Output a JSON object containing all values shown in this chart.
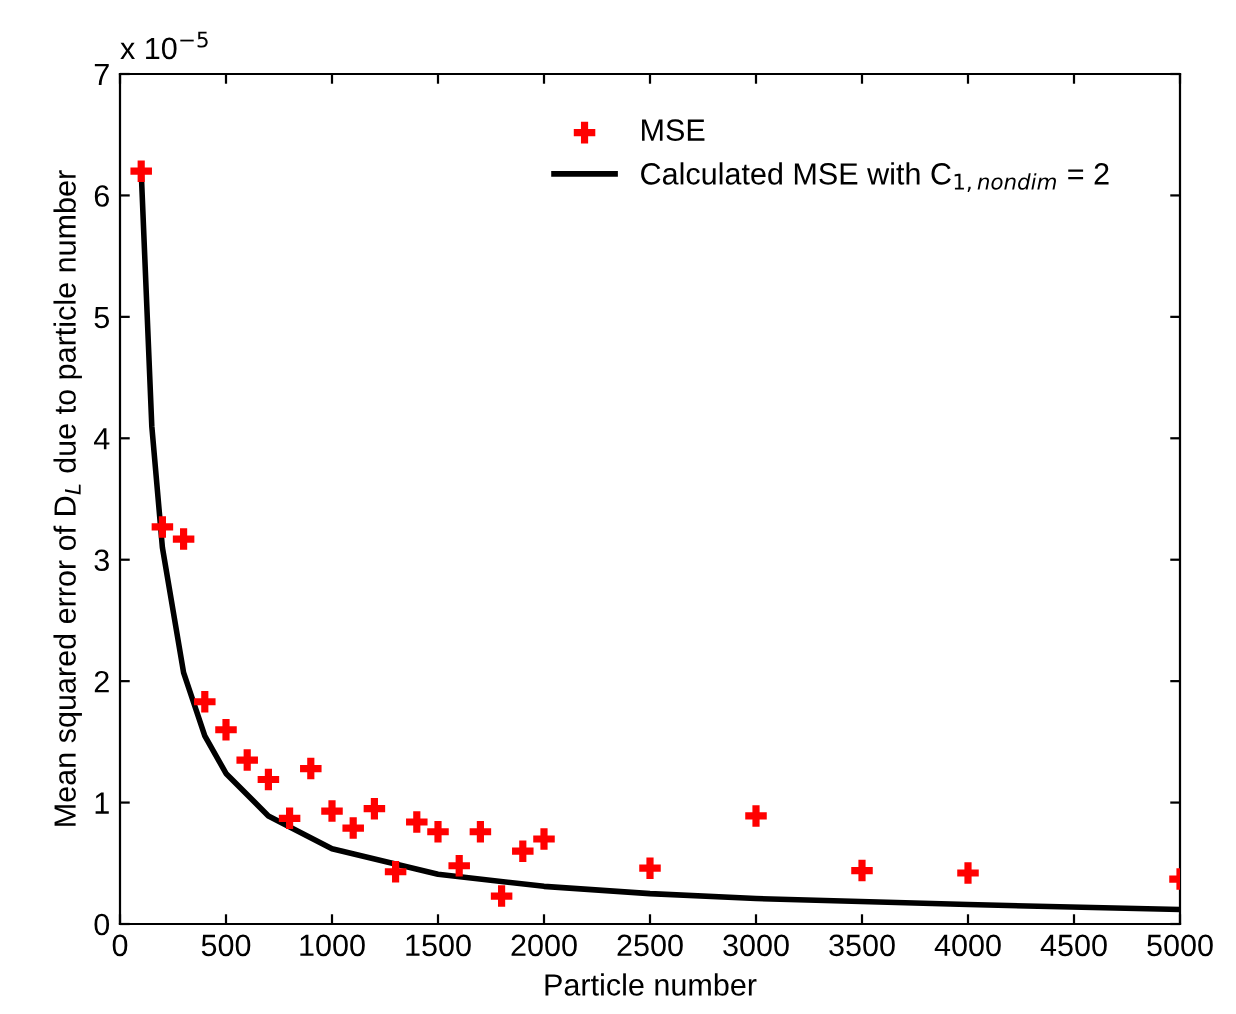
{
  "chart_data": {
    "type": "scatter",
    "xlabel": "Particle number",
    "ylabel": "Mean squared error of D$_{L}$ due to particle number",
    "annotations": [
      "x 10$^{−5}$"
    ],
    "xlim": [
      0,
      5000
    ],
    "xticks": [
      0,
      500,
      1000,
      1500,
      2000,
      2500,
      3000,
      3500,
      4000,
      4500,
      5000
    ],
    "ylim": [
      0,
      7
    ],
    "yticks": [
      0,
      1,
      2,
      3,
      4,
      5,
      6,
      7
    ],
    "grid": false,
    "legend": "top right",
    "series": [
      {
        "name": "MSE",
        "color": "#ff0000",
        "marker": "cross",
        "x": [
          100,
          200,
          300,
          400,
          500,
          600,
          700,
          800,
          900,
          1000,
          1100,
          1200,
          1300,
          1400,
          1500,
          1600,
          1700,
          1800,
          1900,
          2000,
          2500,
          3000,
          3500,
          4000,
          5000
        ],
        "values": [
          6.2,
          3.27,
          3.17,
          1.83,
          1.6,
          1.35,
          1.19,
          0.87,
          1.28,
          0.93,
          0.79,
          0.95,
          0.43,
          0.84,
          0.76,
          0.48,
          0.76,
          0.23,
          0.6,
          0.7,
          0.46,
          0.89,
          0.44,
          0.42,
          0.37
        ]
      },
      {
        "name": "Calculated MSE with C$_{1,nondim}$ = 2",
        "type": "line",
        "color": "#000000",
        "line_style": "solid",
        "x": [
          100,
          150,
          200,
          300,
          400,
          500,
          700,
          1000,
          1500,
          2000,
          2500,
          3000,
          4000,
          5000
        ],
        "values": [
          6.2,
          4.1,
          3.1,
          2.07,
          1.55,
          1.24,
          0.89,
          0.62,
          0.41,
          0.31,
          0.25,
          0.21,
          0.16,
          0.12
        ]
      }
    ]
  }
}
